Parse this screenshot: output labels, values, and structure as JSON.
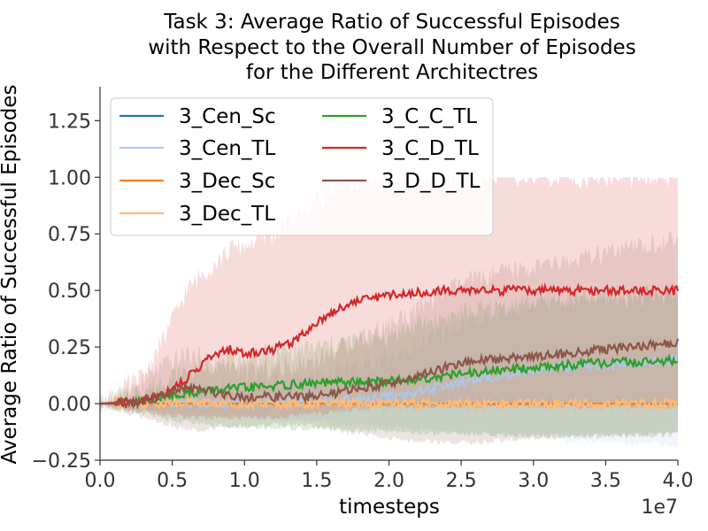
{
  "chart_data": {
    "type": "line",
    "title": [
      "Task 3: Average Ratio of Successful Episodes",
      "with Respect to the Overall Number of Episodes",
      "for the Different Architectres"
    ],
    "xlabel": "timesteps",
    "ylabel": "Average Ratio of Successful Episodes",
    "x_offset_label": "1e7",
    "xlim": [
      0.0,
      4.0
    ],
    "ylim": [
      -0.25,
      1.4
    ],
    "x_unit": "1e7 timesteps",
    "x_ticks": [
      0.0,
      0.5,
      1.0,
      1.5,
      2.0,
      2.5,
      3.0,
      3.5,
      4.0
    ],
    "x_tick_labels": [
      "0.0",
      "0.5",
      "1.0",
      "1.5",
      "2.0",
      "2.5",
      "3.0",
      "3.5",
      "4.0"
    ],
    "y_ticks": [
      -0.25,
      0.0,
      0.25,
      0.5,
      0.75,
      1.0,
      1.25
    ],
    "y_tick_labels": [
      "−0.25",
      "0.00",
      "0.25",
      "0.50",
      "0.75",
      "1.00",
      "1.25"
    ],
    "grid": false,
    "legend_position": "top-left",
    "legend_columns": 2,
    "series": [
      {
        "name": "3_Cen_Sc",
        "color": "#1f77b4",
        "x": [
          0,
          4.0
        ],
        "y": [
          0.0,
          0.0
        ],
        "lower": [
          0.0,
          0.0
        ],
        "upper": [
          0.0,
          0.0
        ]
      },
      {
        "name": "3_Cen_TL",
        "color": "#aec7e8",
        "x": [
          0,
          0.5,
          1.0,
          1.5,
          2.0,
          2.5,
          3.0,
          3.5,
          4.0
        ],
        "y": [
          0.0,
          0.0,
          0.0,
          0.01,
          0.03,
          0.09,
          0.15,
          0.17,
          0.19
        ],
        "lower": [
          0.0,
          -0.03,
          -0.05,
          -0.07,
          -0.09,
          -0.12,
          -0.14,
          -0.16,
          -0.17
        ],
        "upper": [
          0.0,
          0.05,
          0.08,
          0.12,
          0.2,
          0.35,
          0.45,
          0.48,
          0.5
        ]
      },
      {
        "name": "3_Dec_Sc",
        "color": "#ff7f0e",
        "x": [
          0,
          4.0
        ],
        "y": [
          0.0,
          0.0
        ],
        "lower": [
          0.0,
          0.0
        ],
        "upper": [
          0.0,
          0.0
        ]
      },
      {
        "name": "3_Dec_TL",
        "color": "#ffbb78",
        "x": [
          0,
          0.4,
          0.6,
          0.8,
          1.0,
          4.0
        ],
        "y": [
          0.0,
          0.0,
          0.01,
          0.0,
          0.0,
          0.0
        ],
        "lower": [
          0.0,
          -0.01,
          -0.01,
          -0.01,
          0.0,
          0.0
        ],
        "upper": [
          0.0,
          0.03,
          0.04,
          0.02,
          0.0,
          0.0
        ]
      },
      {
        "name": "3_C_C_TL",
        "color": "#2ca02c",
        "x": [
          0,
          0.3,
          0.5,
          0.8,
          1.0,
          1.5,
          2.0,
          2.2,
          2.5,
          3.0,
          3.5,
          4.0
        ],
        "y": [
          0.0,
          0.01,
          0.04,
          0.06,
          0.07,
          0.09,
          0.1,
          0.11,
          0.13,
          0.16,
          0.18,
          0.19
        ],
        "lower": [
          0.0,
          -0.03,
          -0.06,
          -0.08,
          -0.09,
          -0.1,
          -0.11,
          -0.12,
          -0.12,
          -0.13,
          -0.13,
          -0.12
        ],
        "upper": [
          0.0,
          0.06,
          0.12,
          0.18,
          0.2,
          0.25,
          0.3,
          0.35,
          0.4,
          0.45,
          0.47,
          0.48
        ]
      },
      {
        "name": "3_C_D_TL",
        "color": "#d62728",
        "x": [
          0,
          0.3,
          0.45,
          0.6,
          0.75,
          0.9,
          1.0,
          1.2,
          1.35,
          1.5,
          1.65,
          1.8,
          2.0,
          2.2,
          2.4,
          3.0,
          4.0
        ],
        "y": [
          0.0,
          0.01,
          0.05,
          0.11,
          0.2,
          0.24,
          0.22,
          0.24,
          0.28,
          0.36,
          0.42,
          0.46,
          0.48,
          0.49,
          0.5,
          0.5,
          0.5
        ],
        "lower": [
          0.0,
          -0.02,
          -0.04,
          -0.05,
          -0.05,
          -0.05,
          -0.05,
          -0.05,
          -0.04,
          -0.03,
          -0.02,
          -0.01,
          0.0,
          0.0,
          0.0,
          0.0,
          0.0
        ],
        "upper": [
          0.0,
          0.12,
          0.3,
          0.5,
          0.6,
          0.68,
          0.7,
          0.75,
          0.82,
          0.9,
          0.95,
          0.98,
          1.0,
          1.0,
          1.0,
          1.0,
          1.0
        ]
      },
      {
        "name": "3_D_D_TL",
        "color": "#8c564b",
        "x": [
          0,
          0.2,
          0.4,
          0.6,
          0.8,
          1.0,
          1.2,
          1.4,
          1.6,
          1.8,
          2.0,
          2.2,
          2.4,
          2.6,
          2.8,
          3.0,
          3.2,
          3.5,
          3.8,
          4.0
        ],
        "y": [
          0.0,
          0.0,
          0.03,
          0.07,
          0.05,
          0.03,
          0.03,
          0.03,
          0.04,
          0.07,
          0.09,
          0.12,
          0.16,
          0.19,
          0.2,
          0.21,
          0.22,
          0.24,
          0.26,
          0.27
        ],
        "lower": [
          0.0,
          -0.03,
          -0.07,
          -0.1,
          -0.1,
          -0.09,
          -0.08,
          -0.08,
          -0.1,
          -0.12,
          -0.14,
          -0.15,
          -0.16,
          -0.16,
          -0.15,
          -0.14,
          -0.14,
          -0.13,
          -0.13,
          -0.12
        ],
        "upper": [
          0.0,
          0.05,
          0.15,
          0.22,
          0.18,
          0.15,
          0.15,
          0.18,
          0.22,
          0.3,
          0.35,
          0.42,
          0.5,
          0.55,
          0.58,
          0.6,
          0.62,
          0.66,
          0.7,
          0.72
        ]
      }
    ]
  }
}
